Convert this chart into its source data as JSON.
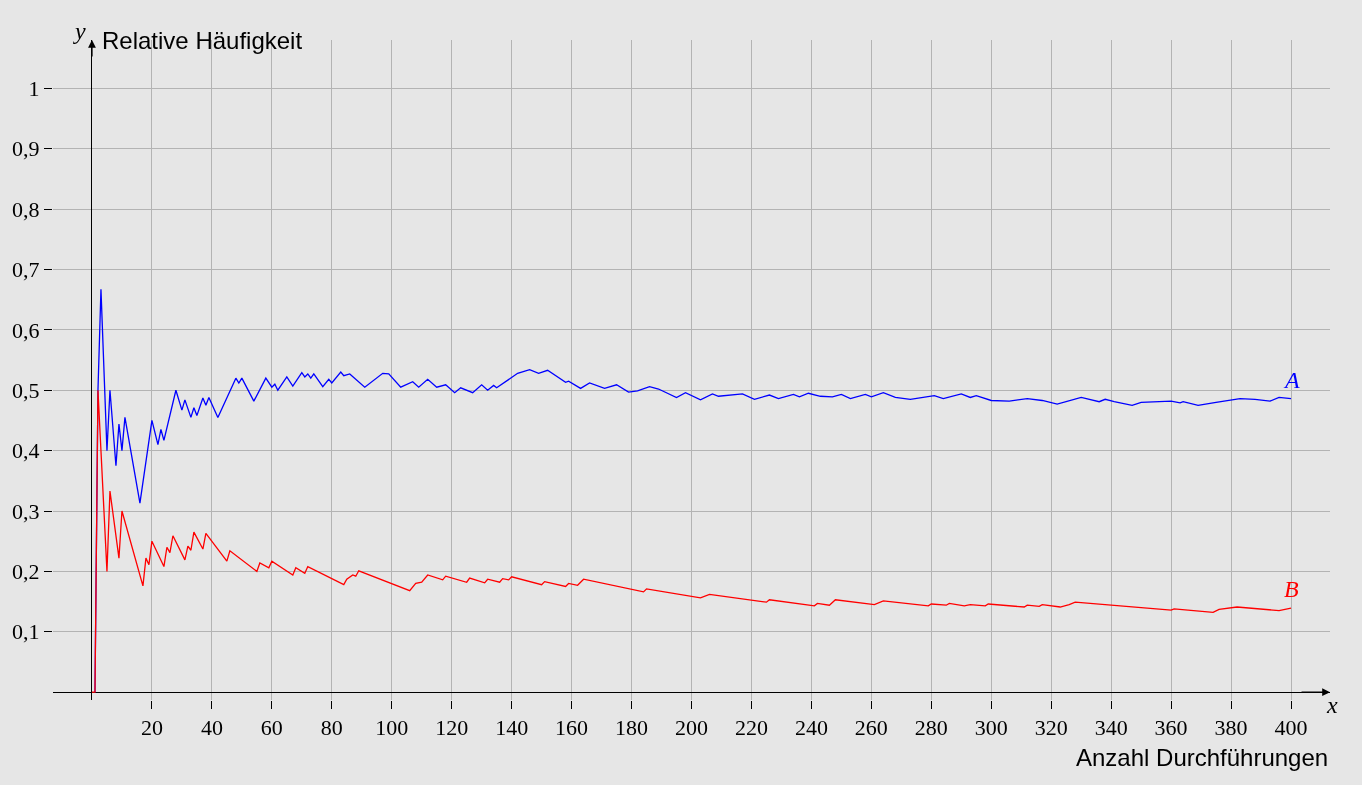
{
  "chart_data": {
    "type": "line",
    "xlabel": "Anzahl Durchführungen",
    "ylabel": "Relative Häufigkeit",
    "annotations": [
      "x",
      "y"
    ],
    "xlim": [
      -13,
      413
    ],
    "ylim": [
      -0.013,
      1.08
    ],
    "xticks": [
      20,
      40,
      60,
      80,
      100,
      120,
      140,
      160,
      180,
      200,
      220,
      240,
      260,
      280,
      300,
      320,
      340,
      360,
      380,
      400
    ],
    "yticks": [
      {
        "value": 0.1,
        "label": "0,1"
      },
      {
        "value": 0.2,
        "label": "0,2"
      },
      {
        "value": 0.3,
        "label": "0,3"
      },
      {
        "value": 0.4,
        "label": "0,4"
      },
      {
        "value": 0.5,
        "label": "0,5"
      },
      {
        "value": 0.6,
        "label": "0,6"
      },
      {
        "value": 0.7,
        "label": "0,7"
      },
      {
        "value": 0.8,
        "label": "0,8"
      },
      {
        "value": 0.9,
        "label": "0,9"
      },
      1
    ],
    "grid": true,
    "legend": false,
    "marker": "none",
    "line_style": "solid",
    "series": [
      {
        "name": "A",
        "color": "#0000ff",
        "x": [
          1,
          2,
          3,
          5,
          6,
          8,
          9,
          10,
          11,
          16,
          20,
          22,
          23,
          24,
          28,
          30,
          31,
          33,
          34,
          35,
          37,
          38,
          39,
          42,
          48,
          49,
          50,
          54,
          58,
          60,
          61,
          62,
          65,
          67,
          70,
          71,
          72,
          73,
          74,
          77,
          79,
          80,
          83,
          84,
          86,
          91,
          97,
          99,
          103,
          107,
          109,
          112,
          115,
          118,
          121,
          123,
          127,
          130,
          132,
          134,
          135,
          142,
          146,
          149,
          152,
          158,
          159,
          163,
          166,
          171,
          175,
          179,
          182,
          186,
          189,
          195,
          198,
          203,
          207,
          209,
          217,
          221,
          226,
          229,
          234,
          236,
          239,
          243,
          247,
          250,
          253,
          258,
          260,
          264,
          268,
          273,
          281,
          284,
          290,
          293,
          295,
          300,
          306,
          312,
          317,
          322,
          330,
          336,
          338,
          341,
          347,
          350,
          360,
          363,
          364,
          369,
          375,
          383,
          388,
          393,
          396,
          400
        ],
        "values": [
          0,
          0.5,
          0.667,
          0.4,
          0.5,
          0.375,
          0.444,
          0.4,
          0.455,
          0.313,
          0.45,
          0.41,
          0.435,
          0.417,
          0.5,
          0.467,
          0.484,
          0.455,
          0.471,
          0.458,
          0.487,
          0.475,
          0.488,
          0.455,
          0.52,
          0.512,
          0.52,
          0.482,
          0.52,
          0.505,
          0.51,
          0.5,
          0.522,
          0.507,
          0.529,
          0.522,
          0.527,
          0.52,
          0.527,
          0.506,
          0.518,
          0.512,
          0.53,
          0.524,
          0.527,
          0.505,
          0.528,
          0.527,
          0.505,
          0.514,
          0.505,
          0.518,
          0.505,
          0.509,
          0.496,
          0.504,
          0.496,
          0.509,
          0.5,
          0.508,
          0.504,
          0.528,
          0.534,
          0.528,
          0.533,
          0.513,
          0.515,
          0.503,
          0.512,
          0.503,
          0.509,
          0.497,
          0.499,
          0.506,
          0.502,
          0.488,
          0.496,
          0.484,
          0.494,
          0.49,
          0.494,
          0.485,
          0.492,
          0.486,
          0.493,
          0.489,
          0.495,
          0.49,
          0.489,
          0.493,
          0.486,
          0.493,
          0.489,
          0.496,
          0.488,
          0.485,
          0.491,
          0.486,
          0.494,
          0.488,
          0.491,
          0.483,
          0.482,
          0.486,
          0.483,
          0.477,
          0.488,
          0.481,
          0.485,
          0.481,
          0.475,
          0.48,
          0.482,
          0.479,
          0.481,
          0.475,
          0.48,
          0.486,
          0.485,
          0.482,
          0.488,
          0.486
        ]
      },
      {
        "name": "B",
        "color": "#ff0000",
        "x": [
          0,
          1,
          2,
          5,
          6,
          9,
          10,
          17,
          18,
          19,
          20,
          24,
          25,
          26,
          27,
          31,
          32,
          33,
          34,
          37,
          38,
          45,
          46,
          55,
          56,
          59,
          60,
          67,
          68,
          71,
          72,
          84,
          85,
          87,
          88,
          89,
          106,
          108,
          110,
          112,
          117,
          118,
          125,
          126,
          131,
          132,
          136,
          137,
          139,
          140,
          150,
          151,
          158,
          159,
          162,
          164,
          184,
          185,
          203,
          206,
          225,
          226,
          241,
          242,
          246,
          248,
          261,
          264,
          279,
          280,
          285,
          286,
          291,
          293,
          298,
          299,
          311,
          312,
          316,
          317,
          323,
          326,
          328,
          360,
          361,
          374,
          376,
          382,
          396,
          400
        ],
        "values": [
          0,
          0,
          0.5,
          0.2,
          0.333,
          0.222,
          0.3,
          0.176,
          0.222,
          0.211,
          0.25,
          0.208,
          0.24,
          0.231,
          0.259,
          0.219,
          0.242,
          0.235,
          0.265,
          0.237,
          0.263,
          0.217,
          0.234,
          0.2,
          0.214,
          0.206,
          0.217,
          0.194,
          0.206,
          0.197,
          0.208,
          0.178,
          0.187,
          0.194,
          0.192,
          0.201,
          0.168,
          0.18,
          0.182,
          0.194,
          0.186,
          0.192,
          0.182,
          0.189,
          0.181,
          0.187,
          0.182,
          0.188,
          0.186,
          0.191,
          0.178,
          0.183,
          0.175,
          0.18,
          0.177,
          0.187,
          0.166,
          0.171,
          0.156,
          0.162,
          0.149,
          0.153,
          0.143,
          0.147,
          0.144,
          0.153,
          0.145,
          0.151,
          0.143,
          0.146,
          0.144,
          0.147,
          0.143,
          0.145,
          0.143,
          0.146,
          0.141,
          0.144,
          0.142,
          0.145,
          0.141,
          0.145,
          0.149,
          0.136,
          0.138,
          0.132,
          0.137,
          0.141,
          0.135,
          0.139
        ]
      }
    ]
  }
}
